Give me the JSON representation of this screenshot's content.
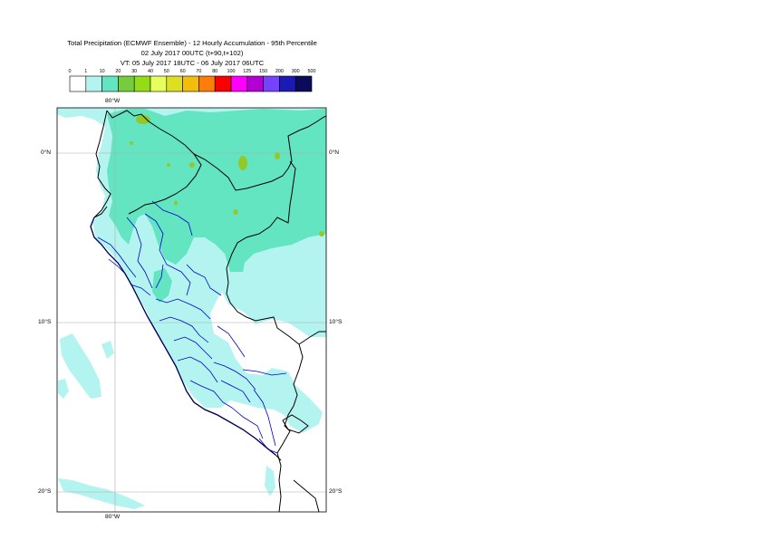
{
  "header": {
    "line1": "Total Precipitation (ECMWF Ensemble) - 12 Hourly Accumulation - 95th Percentile",
    "line2": "02 July 2017 00UTC (t+90,t+102)",
    "line3": "VT: 05 July 2017 18UTC - 06 July 2017 06UTC"
  },
  "legend": {
    "ticks": [
      "0",
      "1",
      "10",
      "20",
      "30",
      "40",
      "50",
      "60",
      "70",
      "80",
      "100",
      "125",
      "150",
      "200",
      "300",
      "500"
    ],
    "colors": [
      "#ffffff",
      "#b4f4f0",
      "#63e5c1",
      "#75cc3c",
      "#94dd16",
      "#e6ff5c",
      "#dede22",
      "#f2bd0c",
      "#fc7e0a",
      "#fa0000",
      "#ff00ff",
      "#b300d3",
      "#7543fb",
      "#1c1ab5",
      "#0b0b57"
    ]
  },
  "map": {
    "lon_label_top": "80°W",
    "lon_label_bottom": "80°W",
    "lat_labels": [
      "0°N",
      "10°S",
      "20°S"
    ],
    "colors": {
      "light_cyan": "#b4f4f0",
      "medium_green": "#63e5c1",
      "yellow_green": "#94c828",
      "country_border": "#000000",
      "region_border": "#0000cc",
      "gridline": "#aaaaaa"
    }
  }
}
